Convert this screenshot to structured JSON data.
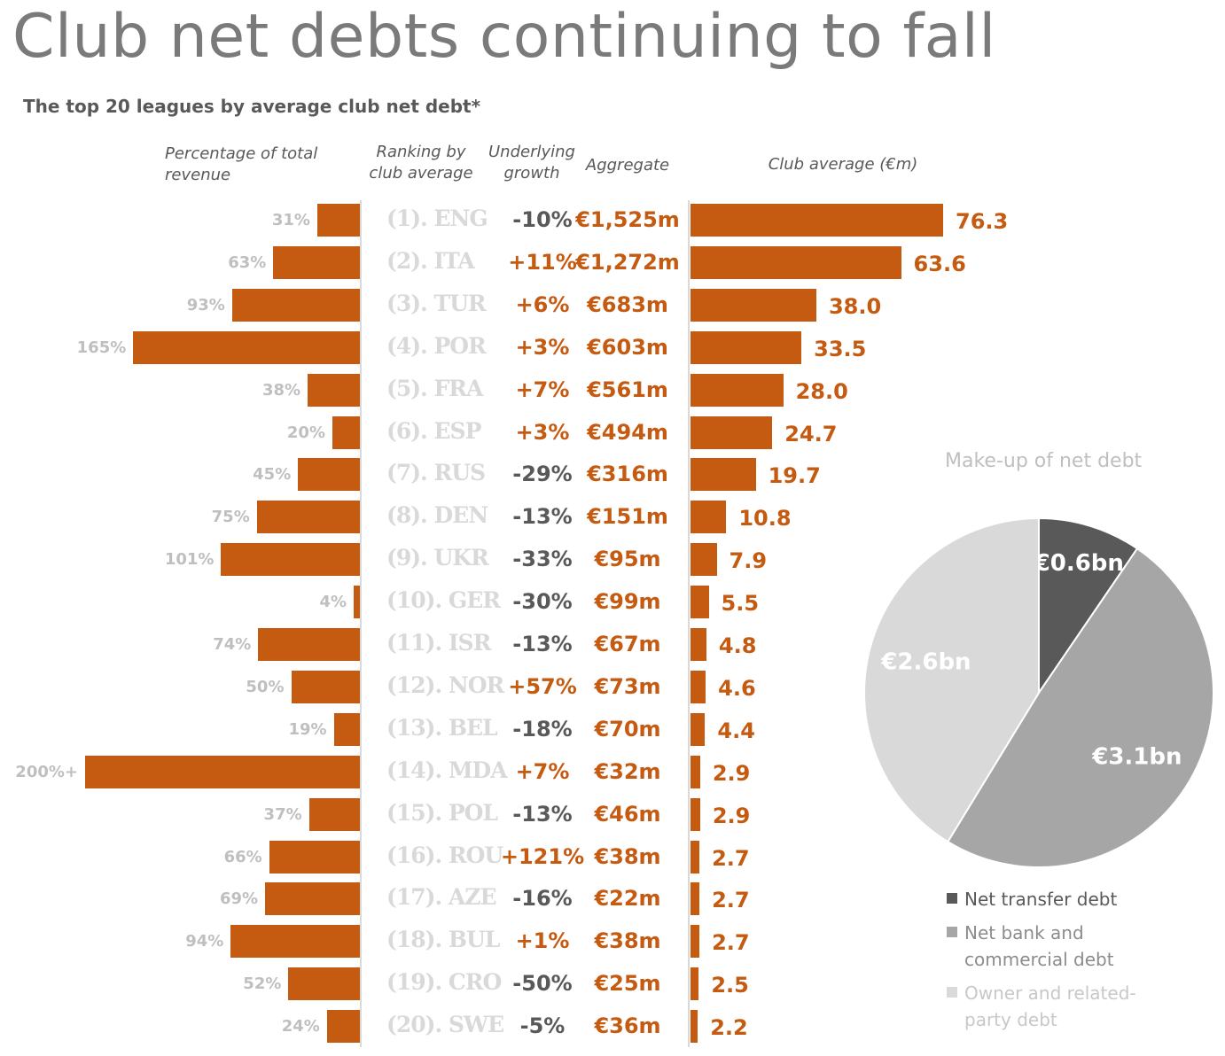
{
  "title": "Club net debts continuing to fall",
  "subtitle": "The top 20 leagues by average club net debt*",
  "headers": {
    "pct": "Percentage of total revenue",
    "rank": "Ranking by club average",
    "growth": "Underlying growth",
    "aggregate": "Aggregate",
    "average": "Club average (€m)"
  },
  "colors": {
    "bar": "#c55a11",
    "positive_growth": "#c55a11",
    "negative_growth": "#595959",
    "muted": "#bfbfbf",
    "pie_dark": "#595959",
    "pie_mid": "#a6a6a6",
    "pie_light": "#d9d9d9"
  },
  "chart_data": [
    {
      "type": "bar",
      "title": "Club average (€m)",
      "categories": [
        "(1). ENG",
        "(2). ITA",
        "(3). TUR",
        "(4). POR",
        "(5). FRA",
        "(6). ESP",
        "(7). RUS",
        "(8). DEN",
        "(9). UKR",
        "(10). GER",
        "(11). ISR",
        "(12). NOR",
        "(13). BEL",
        "(14). MDA",
        "(15). POL",
        "(16). ROU",
        "(17). AZE",
        "(18). BUL",
        "(19). CRO",
        "(20). SWE"
      ],
      "values": [
        76.3,
        63.6,
        38.0,
        33.5,
        28.0,
        24.7,
        19.7,
        10.8,
        7.9,
        5.5,
        4.8,
        4.6,
        4.4,
        2.9,
        2.9,
        2.7,
        2.7,
        2.7,
        2.5,
        2.2
      ],
      "value_labels": [
        "76.3",
        "63.6",
        "38.0",
        "33.5",
        "28.0",
        "24.7",
        "19.7",
        "10.8",
        "7.9",
        "5.5",
        "4.8",
        "4.6",
        "4.4",
        "2.9",
        "2.9",
        "2.7",
        "2.7",
        "2.7",
        "2.5",
        "2.2"
      ],
      "pct_of_revenue": [
        31,
        63,
        93,
        165,
        38,
        20,
        45,
        75,
        101,
        4,
        74,
        50,
        19,
        200,
        37,
        66,
        69,
        94,
        52,
        24
      ],
      "pct_labels": [
        "31%",
        "63%",
        "93%",
        "165%",
        "38%",
        "20%",
        "45%",
        "75%",
        "101%",
        "4%",
        "74%",
        "50%",
        "19%",
        "200%+",
        "37%",
        "66%",
        "69%",
        "94%",
        "52%",
        "24%"
      ],
      "growth_values": [
        -10,
        11,
        6,
        3,
        7,
        3,
        -29,
        -13,
        -33,
        -30,
        -13,
        57,
        -18,
        7,
        -13,
        121,
        -16,
        1,
        -50,
        -5
      ],
      "growth_labels": [
        "-10%",
        "+11%",
        "+6%",
        "+3%",
        "+7%",
        "+3%",
        "-29%",
        "-13%",
        "-33%",
        "-30%",
        "-13%",
        "+57%",
        "-18%",
        "+7%",
        "-13%",
        "+121%",
        "-16%",
        "+1%",
        "-50%",
        "-5%"
      ],
      "aggregate_values": [
        1525,
        1272,
        683,
        603,
        561,
        494,
        316,
        151,
        95,
        99,
        67,
        73,
        70,
        32,
        46,
        38,
        22,
        38,
        25,
        36
      ],
      "aggregate_labels": [
        "€1,525m",
        "€1,272m",
        "€683m",
        "€603m",
        "€561m",
        "€494m",
        "€316m",
        "€151m",
        "€95m",
        "€99m",
        "€67m",
        "€73m",
        "€70m",
        "€32m",
        "€46m",
        "€38m",
        "€22m",
        "€38m",
        "€25m",
        "€36m"
      ],
      "xlim_pct": [
        0,
        200
      ],
      "xlim_avg": [
        0,
        80
      ]
    },
    {
      "type": "pie",
      "title": "Make-up of net debt",
      "labels": [
        "Net transfer debt",
        "Net bank and commercial debt",
        "Owner and related-party debt"
      ],
      "values": [
        0.6,
        3.1,
        2.6
      ],
      "value_labels": [
        "€0.6bn",
        "€3.1bn",
        "€2.6bn"
      ]
    }
  ]
}
